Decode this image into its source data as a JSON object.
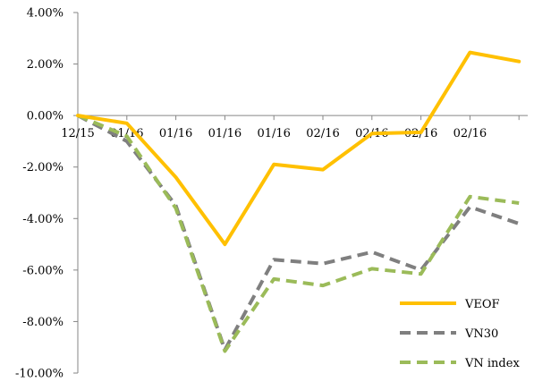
{
  "chart_data": {
    "type": "line",
    "title": "",
    "xlabel": "",
    "ylabel": "",
    "x_tick_labels": [
      "12/15",
      "01/16",
      "01/16",
      "01/16",
      "01/16",
      "02/16",
      "02/16",
      "02/16",
      "02/16"
    ],
    "y_tick_labels": [
      "4.00%",
      "2.00%",
      "0.00%",
      "-2.00%",
      "-4.00%",
      "-6.00%",
      "-8.00%",
      "-10.00%"
    ],
    "ylim": [
      -10,
      4
    ],
    "grid": false,
    "legend_position": "bottom-right",
    "series": [
      {
        "name": "VEOF",
        "color": "#ffc000",
        "style": "solid",
        "values": [
          0.0,
          -0.3,
          -2.4,
          -5.0,
          -1.9,
          -2.1,
          -0.7,
          -0.65,
          2.45,
          2.1
        ]
      },
      {
        "name": "VN30",
        "color": "#7f7f7f",
        "style": "dashed",
        "values": [
          0.0,
          -1.0,
          -3.5,
          -9.1,
          -5.6,
          -5.75,
          -5.3,
          -6.0,
          -3.55,
          -4.2
        ]
      },
      {
        "name": "VN index",
        "color": "#9bbb59",
        "style": "dashed",
        "values": [
          0.0,
          -0.8,
          -3.6,
          -9.15,
          -6.35,
          -6.6,
          -5.95,
          -6.15,
          -3.15,
          -3.4
        ]
      }
    ]
  }
}
